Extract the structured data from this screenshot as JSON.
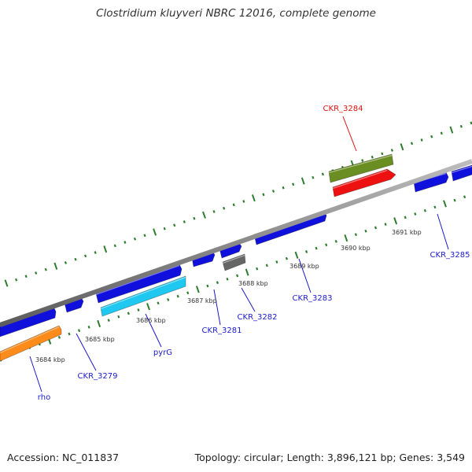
{
  "title": "Clostridium kluyveri NBRC 12016, complete genome",
  "footer": {
    "accession": "Accession: NC_011837",
    "stats": "Topology: circular; Length: 3,896,121 bp; Genes: 3,549"
  },
  "colors": {
    "backbone": "#8a8a8a",
    "ticks": "#2e7d2e",
    "tick_label": "#333333",
    "label_default": "#1a1acc",
    "label_highlight": "#e01010"
  },
  "tick_labels": [
    "3684 kbp",
    "3685 kbp",
    "3686 kbp",
    "3687 kbp",
    "3688 kbp",
    "3689 kbp",
    "3690 kbp",
    "3691 kbp"
  ],
  "genes": [
    {
      "id": "g1",
      "color": "#1010dd",
      "label": ""
    },
    {
      "id": "g2",
      "color": "#1010dd",
      "label": ""
    },
    {
      "id": "g3",
      "color": "#1010dd",
      "label": ""
    },
    {
      "id": "g4",
      "color": "#1010dd",
      "label": ""
    },
    {
      "id": "g5",
      "color": "#1010dd",
      "label": ""
    },
    {
      "id": "g6",
      "color": "#1010dd",
      "label": ""
    },
    {
      "id": "g7",
      "color": "#1010dd",
      "label": ""
    },
    {
      "id": "g8",
      "color": "#1010dd",
      "label": ""
    },
    {
      "id": "g9",
      "color": "#ff8c1a",
      "label": "rho"
    },
    {
      "id": "g10",
      "color": "#1ec8f0",
      "label": "pyrG"
    },
    {
      "id": "g11",
      "color": "#666666",
      "label": "CKR_3282"
    },
    {
      "id": "g12",
      "color": "#6b8e23",
      "label": ""
    },
    {
      "id": "g13",
      "color": "#ee1111",
      "label": "CKR_3284"
    }
  ],
  "gene_labels": [
    {
      "text": "rho",
      "color": "#1a1acc"
    },
    {
      "text": "CKR_3279",
      "color": "#1a1acc"
    },
    {
      "text": "pyrG",
      "color": "#1a1acc"
    },
    {
      "text": "CKR_3281",
      "color": "#1a1acc"
    },
    {
      "text": "CKR_3282",
      "color": "#1a1acc"
    },
    {
      "text": "CKR_3283",
      "color": "#1a1acc"
    },
    {
      "text": "CKR_3285",
      "color": "#1a1acc"
    },
    {
      "text": "CKR_3284",
      "color": "#e01010"
    }
  ]
}
